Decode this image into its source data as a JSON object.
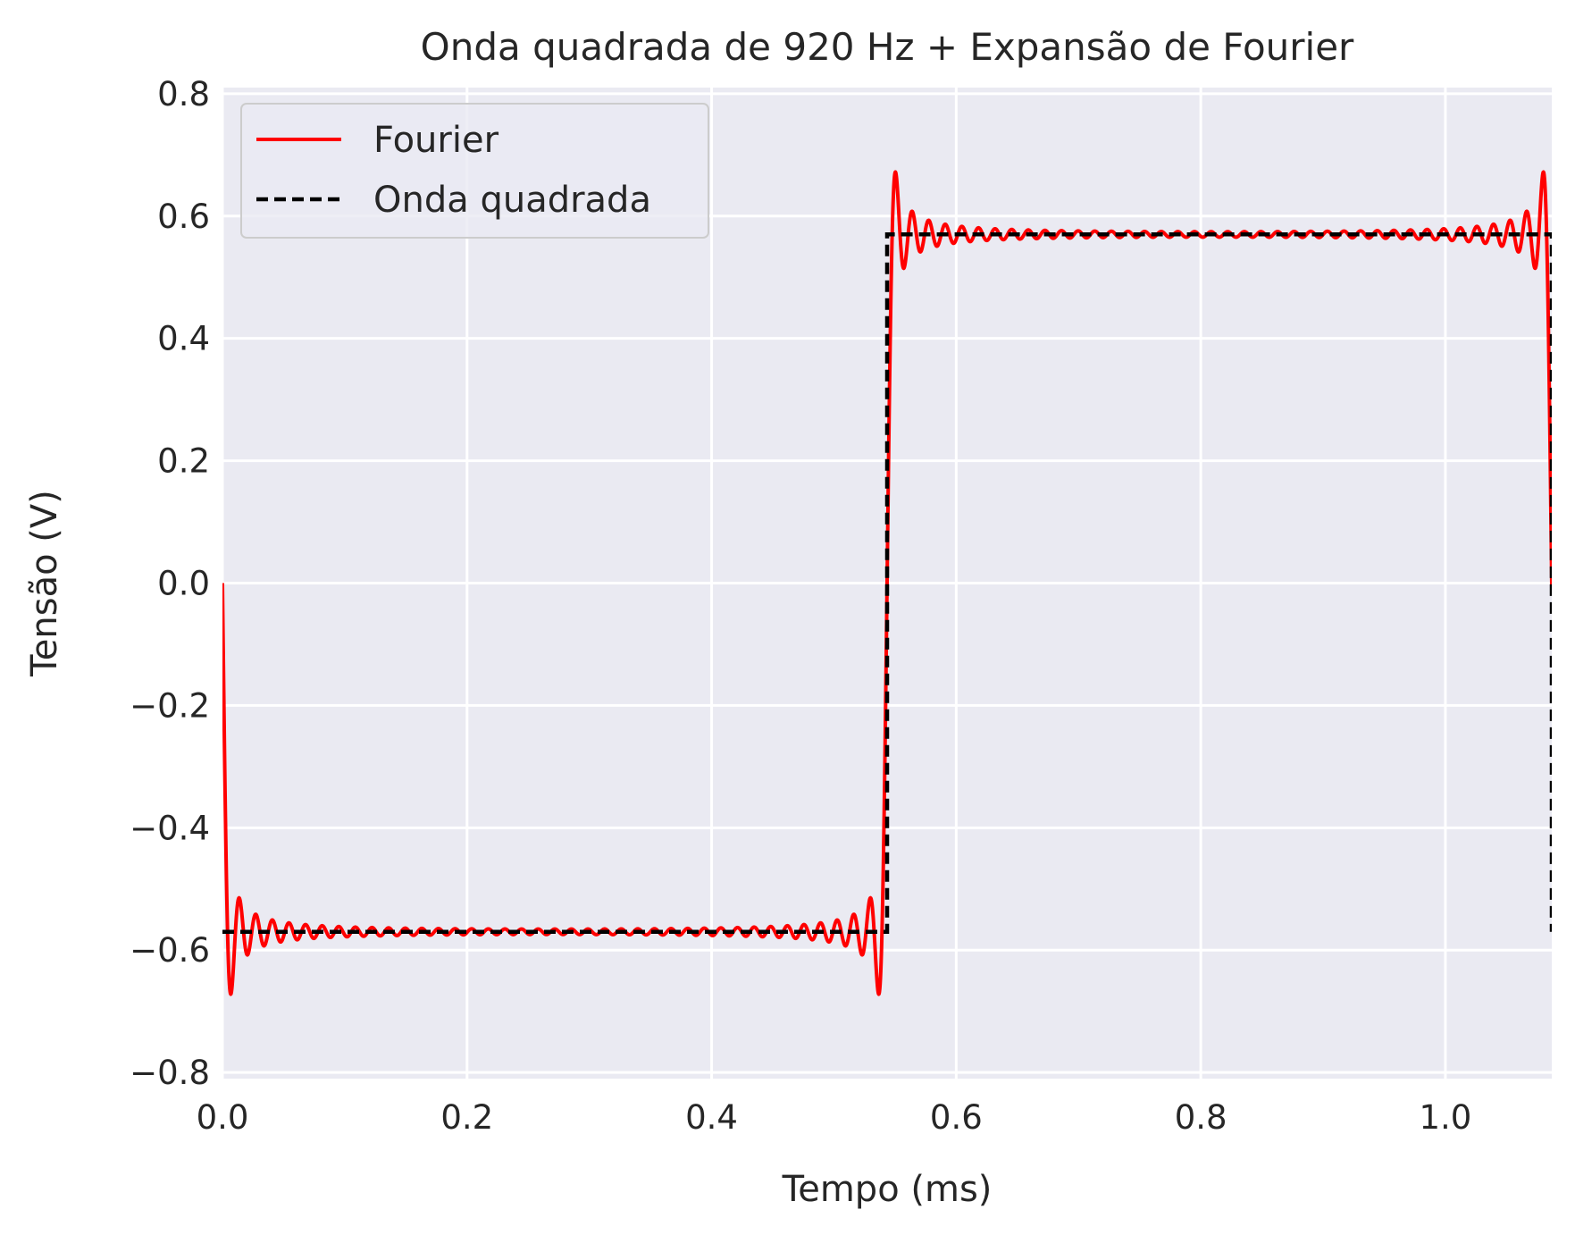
{
  "chart_data": {
    "type": "line",
    "title": "Onda quadrada de 920 Hz + Expansão de Fourier",
    "xlabel": "Tempo (ms)",
    "ylabel": "Tensão (V)",
    "xlim": [
      0,
      1.087
    ],
    "ylim": [
      -0.81,
      0.81
    ],
    "xticks": [
      0.0,
      0.2,
      0.4,
      0.6,
      0.8,
      1.0
    ],
    "xtick_labels": [
      "0.0",
      "0.2",
      "0.4",
      "0.6",
      "0.8",
      "1.0"
    ],
    "yticks": [
      -0.8,
      -0.6,
      -0.4,
      -0.2,
      0.0,
      0.2,
      0.4,
      0.6,
      0.8
    ],
    "ytick_labels": [
      "−0.8",
      "−0.6",
      "−0.4",
      "−0.2",
      "0.0",
      "0.2",
      "0.4",
      "0.6",
      "0.8"
    ],
    "grid": true,
    "legend_position": "top-left",
    "background": "#eaeaf2",
    "series": [
      {
        "name": "Fourier",
        "style": "solid",
        "color": "#ff0000",
        "frequency_hz": 920,
        "amplitude_v": 0.57,
        "harmonics": 79,
        "x_start_ms": 0.0,
        "x_end_ms": 1.087
      },
      {
        "name": "Onda quadrada",
        "style": "dashed",
        "color": "#000000",
        "x": [
          0.0,
          0.5435,
          0.5435,
          1.087,
          1.087
        ],
        "y": [
          -0.57,
          -0.57,
          0.57,
          0.57,
          -0.57
        ]
      }
    ]
  }
}
